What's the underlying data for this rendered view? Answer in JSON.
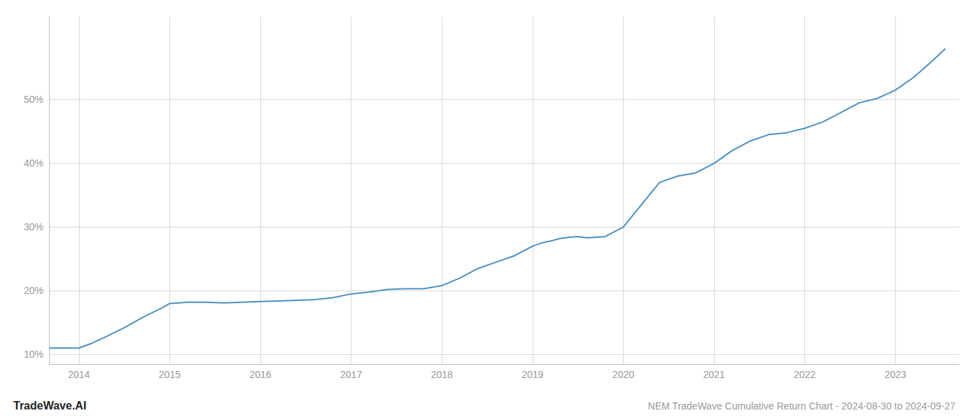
{
  "chart_data": {
    "type": "line",
    "title": "NEM TradeWave Cumulative Return Chart - 2024-08-30 to 2024-09-27",
    "annotations": [
      "TradeWave.AI"
    ],
    "color": "#4a90c4",
    "grid": true,
    "x": [
      2013.67,
      2014.0,
      2014.15,
      2014.3,
      2014.5,
      2014.7,
      2014.9,
      2015.0,
      2015.1,
      2015.2,
      2015.4,
      2015.6,
      2015.8,
      2016.0,
      2016.2,
      2016.4,
      2016.6,
      2016.8,
      2017.0,
      2017.2,
      2017.4,
      2017.6,
      2017.8,
      2018.0,
      2018.2,
      2018.4,
      2018.6,
      2018.8,
      2019.0,
      2019.1,
      2019.2,
      2019.3,
      2019.4,
      2019.5,
      2019.6,
      2019.8,
      2020.0,
      2020.2,
      2020.4,
      2020.6,
      2020.8,
      2021.0,
      2021.2,
      2021.4,
      2021.6,
      2021.8,
      2022.0,
      2022.2,
      2022.4,
      2022.6,
      2022.8,
      2023.0,
      2023.2,
      2023.4,
      2023.55
    ],
    "values": [
      11.0,
      11.0,
      11.8,
      12.8,
      14.2,
      15.8,
      17.2,
      18.0,
      18.1,
      18.2,
      18.2,
      18.1,
      18.2,
      18.3,
      18.4,
      18.5,
      18.6,
      18.9,
      19.5,
      19.8,
      20.2,
      20.3,
      20.3,
      20.8,
      22.0,
      23.5,
      24.5,
      25.5,
      27.0,
      27.5,
      27.8,
      28.2,
      28.4,
      28.5,
      28.3,
      28.5,
      30.0,
      33.5,
      37.0,
      38.0,
      38.5,
      40.0,
      42.0,
      43.5,
      44.5,
      44.8,
      45.5,
      46.5,
      48.0,
      49.5,
      50.2,
      51.5,
      53.5,
      56.0,
      58.0
    ],
    "xlim": [
      2013.67,
      2023.7
    ],
    "ylim": [
      8.5,
      63.0
    ],
    "xticks": [
      2014,
      2015,
      2016,
      2017,
      2018,
      2019,
      2020,
      2021,
      2022,
      2023
    ],
    "yticks": [
      {
        "value": 10,
        "label": "10%"
      },
      {
        "value": 20,
        "label": "20%"
      },
      {
        "value": 30,
        "label": "30%"
      },
      {
        "value": 40,
        "label": "40%"
      },
      {
        "value": 50,
        "label": "50%"
      }
    ]
  }
}
